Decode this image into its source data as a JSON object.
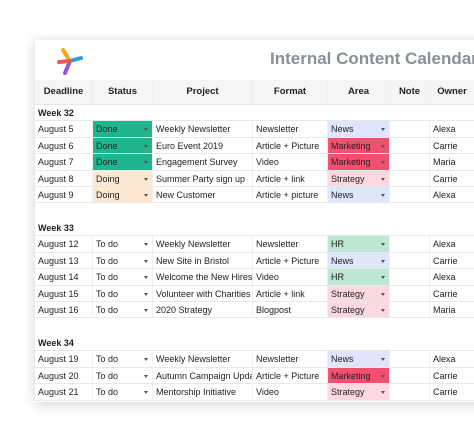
{
  "header": {
    "title": "Internal Content Calendar"
  },
  "columns": [
    "Deadline",
    "Status",
    "Project",
    "Format",
    "Area",
    "Note",
    "Owner"
  ],
  "colors": {
    "status": {
      "Done": "#20b48f",
      "Doing": "#fde9d1",
      "To do": "#ffffff"
    },
    "area": {
      "News": "#dfe5fb",
      "Marketing": "#f1506f",
      "Strategy": "#fcd8e0",
      "HR": "#bde7d2"
    }
  },
  "weeks": [
    {
      "label": "Week 32",
      "rows": [
        {
          "deadline": "August 5",
          "status": "Done",
          "project": "Weekly Newsletter",
          "format": "Newsletter",
          "area": "News",
          "owner": "Alexa"
        },
        {
          "deadline": "August 6",
          "status": "Done",
          "project": "Euro Event 2019",
          "format": "Article + Picture",
          "area": "Marketing",
          "owner": "Carrie"
        },
        {
          "deadline": "August 7",
          "status": "Done",
          "project": "Engagement Survey",
          "format": "Video",
          "area": "Marketing",
          "owner": "Maria"
        },
        {
          "deadline": "August 8",
          "status": "Doing",
          "project": "Summer Party sign up",
          "format": "Article + link",
          "area": "Strategy",
          "owner": "Carrie"
        },
        {
          "deadline": "August 9",
          "status": "Doing",
          "project": "New Customer",
          "format": "Article + picture",
          "area": "News",
          "owner": "Alexa"
        }
      ]
    },
    {
      "label": "Week 33",
      "rows": [
        {
          "deadline": "August 12",
          "status": "To do",
          "project": "Weekly Newsletter",
          "format": "Newsletter",
          "area": "HR",
          "owner": "Alexa"
        },
        {
          "deadline": "August 13",
          "status": "To do",
          "project": "New Site in Bristol",
          "format": "Article + Picture",
          "area": "News",
          "owner": "Carrie"
        },
        {
          "deadline": "August 14",
          "status": "To do",
          "project": "Welcome the New Hires",
          "format": "Video",
          "area": "HR",
          "owner": "Alexa"
        },
        {
          "deadline": "August 15",
          "status": "To do",
          "project": "Volunteer with Charities",
          "format": "Article + link",
          "area": "Strategy",
          "owner": "Carrie"
        },
        {
          "deadline": "August 16",
          "status": "To do",
          "project": "2020 Strategy",
          "format": "Blogpost",
          "area": "Strategy",
          "owner": "Maria"
        }
      ]
    },
    {
      "label": "Week 34",
      "rows": [
        {
          "deadline": "August 19",
          "status": "To do",
          "project": "Weekly Newsletter",
          "format": "Newsletter",
          "area": "News",
          "owner": "Alexa"
        },
        {
          "deadline": "August 20",
          "status": "To do",
          "project": "Autumn Campaign Upda",
          "format": "Article + Picture",
          "area": "Marketing",
          "owner": "Carrie"
        },
        {
          "deadline": "August 21",
          "status": "To do",
          "project": "Mentorship Initiative",
          "format": "Video",
          "area": "Strategy",
          "owner": "Carrie"
        }
      ]
    }
  ]
}
